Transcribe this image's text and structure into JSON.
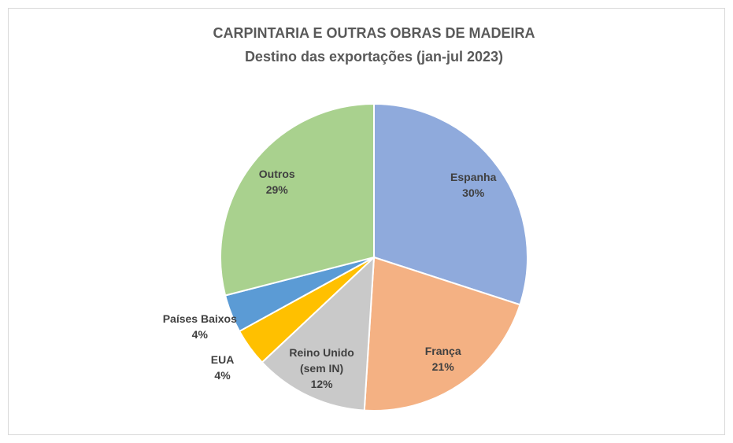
{
  "chart_data": {
    "type": "pie",
    "title": "CARPINTARIA E OUTRAS OBRAS DE MADEIRA",
    "subtitle": "Destino das exportações (jan-jul 2023)",
    "categories": [
      "Espanha",
      "França",
      "Reino Unido (sem IN)",
      "EUA",
      "Países Baixos",
      "Outros"
    ],
    "values": [
      30,
      21,
      12,
      4,
      4,
      29
    ],
    "value_labels": [
      "30%",
      "21%",
      "12%",
      "4%",
      "4%",
      "29%"
    ],
    "colors": [
      "#8faadc",
      "#f4b183",
      "#c9c9c9",
      "#ffc000",
      "#5b9bd5",
      "#a9d18e"
    ]
  }
}
